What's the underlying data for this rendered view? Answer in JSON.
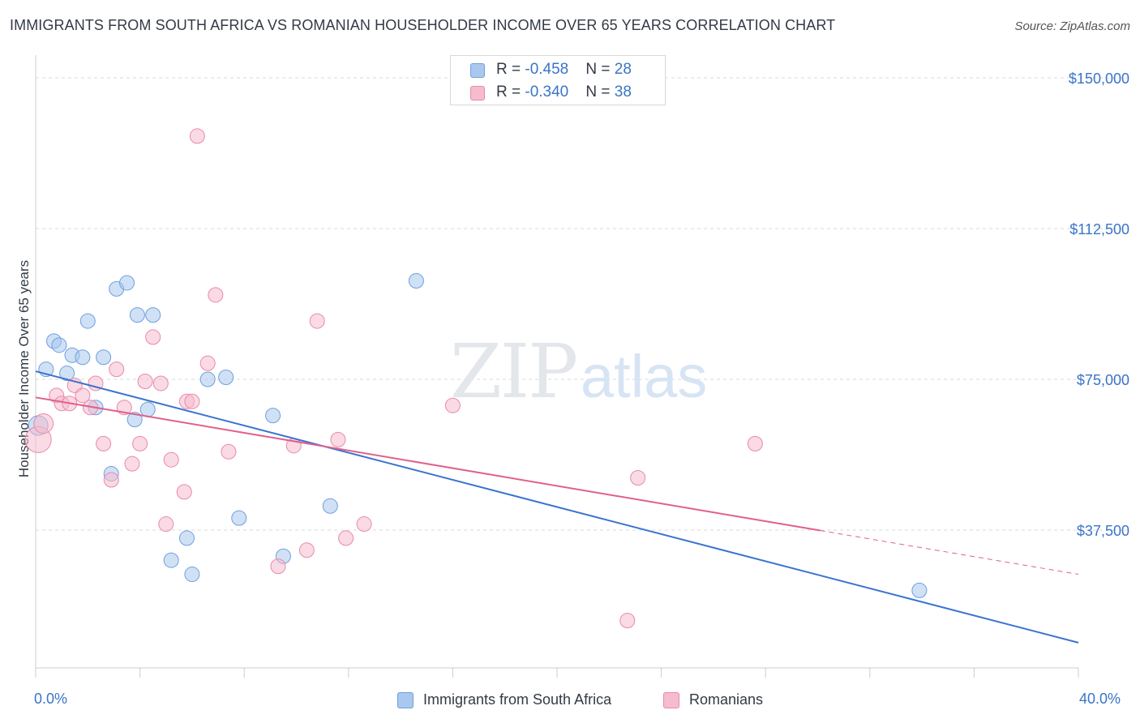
{
  "title": "IMMIGRANTS FROM SOUTH AFRICA VS ROMANIAN HOUSEHOLDER INCOME OVER 65 YEARS CORRELATION CHART",
  "source": "Source: ZipAtlas.com",
  "watermark": {
    "zip": "ZIP",
    "atlas": "atlas"
  },
  "legend_stats": [
    {
      "r_label": "R = ",
      "r_value": "-0.458",
      "n_label": "N = ",
      "n_value": "28",
      "color": "#a9c8ef",
      "border": "#6f9fdd"
    },
    {
      "r_label": "R = ",
      "r_value": "-0.340",
      "n_label": "N = ",
      "n_value": "38",
      "color": "#f6bccd",
      "border": "#e98aa7"
    }
  ],
  "chart_data": {
    "type": "scatter",
    "ylabel": "Householder Income Over 65 years",
    "xlim": [
      0,
      40
    ],
    "ylim": [
      0,
      155000
    ],
    "x_tick_labels": [
      "0.0%",
      "40.0%"
    ],
    "y_ticks": [
      {
        "value": 150000,
        "label": "$150,000"
      },
      {
        "value": 112500,
        "label": "$112,500"
      },
      {
        "value": 75000,
        "label": "$75,000"
      },
      {
        "value": 37500,
        "label": "$37,500"
      }
    ],
    "series": [
      {
        "name": "Immigrants from South Africa",
        "color": "#a9c8ef",
        "stroke": "#6f9fdd",
        "line_color": "#3a74d0",
        "trend": {
          "x": [
            0,
            40
          ],
          "y": [
            77000,
            9500
          ],
          "solid_to": 40
        },
        "points": [
          [
            0.1,
            63500,
            12
          ],
          [
            0.4,
            77500,
            9
          ],
          [
            0.7,
            84500,
            9
          ],
          [
            0.9,
            83500,
            9
          ],
          [
            1.2,
            76500,
            9
          ],
          [
            1.4,
            81000,
            9
          ],
          [
            1.8,
            80500,
            9
          ],
          [
            2.0,
            89500,
            9
          ],
          [
            2.3,
            68000,
            9
          ],
          [
            2.6,
            80500,
            9
          ],
          [
            2.9,
            51500,
            9
          ],
          [
            3.1,
            97500,
            9
          ],
          [
            3.5,
            99000,
            9
          ],
          [
            3.8,
            65000,
            9
          ],
          [
            3.9,
            91000,
            9
          ],
          [
            4.3,
            67500,
            9
          ],
          [
            4.5,
            91000,
            9
          ],
          [
            5.2,
            30000,
            9
          ],
          [
            5.8,
            35500,
            9
          ],
          [
            6.0,
            26500,
            9
          ],
          [
            6.6,
            75000,
            9
          ],
          [
            7.3,
            75500,
            9
          ],
          [
            7.8,
            40500,
            9
          ],
          [
            9.1,
            66000,
            9
          ],
          [
            9.5,
            31000,
            9
          ],
          [
            11.3,
            43500,
            9
          ],
          [
            14.6,
            99500,
            9
          ],
          [
            33.9,
            22500,
            9
          ]
        ]
      },
      {
        "name": "Romanians",
        "color": "#f6bccd",
        "stroke": "#e98aa7",
        "line_color": "#e0608c",
        "trend": {
          "x": [
            0,
            40
          ],
          "y": [
            70500,
            26500
          ],
          "solid_to": 30.1
        },
        "points": [
          [
            0.1,
            60000,
            16
          ],
          [
            0.3,
            64000,
            12
          ],
          [
            0.8,
            71000,
            9
          ],
          [
            1.0,
            69000,
            9
          ],
          [
            1.3,
            69000,
            9
          ],
          [
            1.5,
            73500,
            9
          ],
          [
            1.8,
            71000,
            9
          ],
          [
            2.1,
            68000,
            9
          ],
          [
            2.3,
            74000,
            9
          ],
          [
            2.6,
            59000,
            9
          ],
          [
            2.9,
            50000,
            9
          ],
          [
            3.1,
            77500,
            9
          ],
          [
            3.4,
            68000,
            9
          ],
          [
            3.7,
            54000,
            9
          ],
          [
            4.0,
            59000,
            9
          ],
          [
            4.2,
            74500,
            9
          ],
          [
            4.5,
            85500,
            9
          ],
          [
            4.8,
            74000,
            9
          ],
          [
            5.0,
            39000,
            9
          ],
          [
            5.2,
            55000,
            9
          ],
          [
            5.7,
            47000,
            9
          ],
          [
            5.8,
            69500,
            9
          ],
          [
            6.0,
            69500,
            9
          ],
          [
            6.2,
            135500,
            9
          ],
          [
            6.6,
            79000,
            9
          ],
          [
            6.9,
            96000,
            9
          ],
          [
            7.4,
            57000,
            9
          ],
          [
            9.3,
            28500,
            9
          ],
          [
            9.9,
            58500,
            9
          ],
          [
            10.4,
            32500,
            9
          ],
          [
            10.8,
            89500,
            9
          ],
          [
            11.6,
            60000,
            9
          ],
          [
            11.9,
            35500,
            9
          ],
          [
            12.6,
            39000,
            9
          ],
          [
            16.0,
            68500,
            9
          ],
          [
            22.7,
            15000,
            9
          ],
          [
            23.1,
            50500,
            9
          ],
          [
            27.6,
            59000,
            9
          ]
        ]
      }
    ]
  }
}
